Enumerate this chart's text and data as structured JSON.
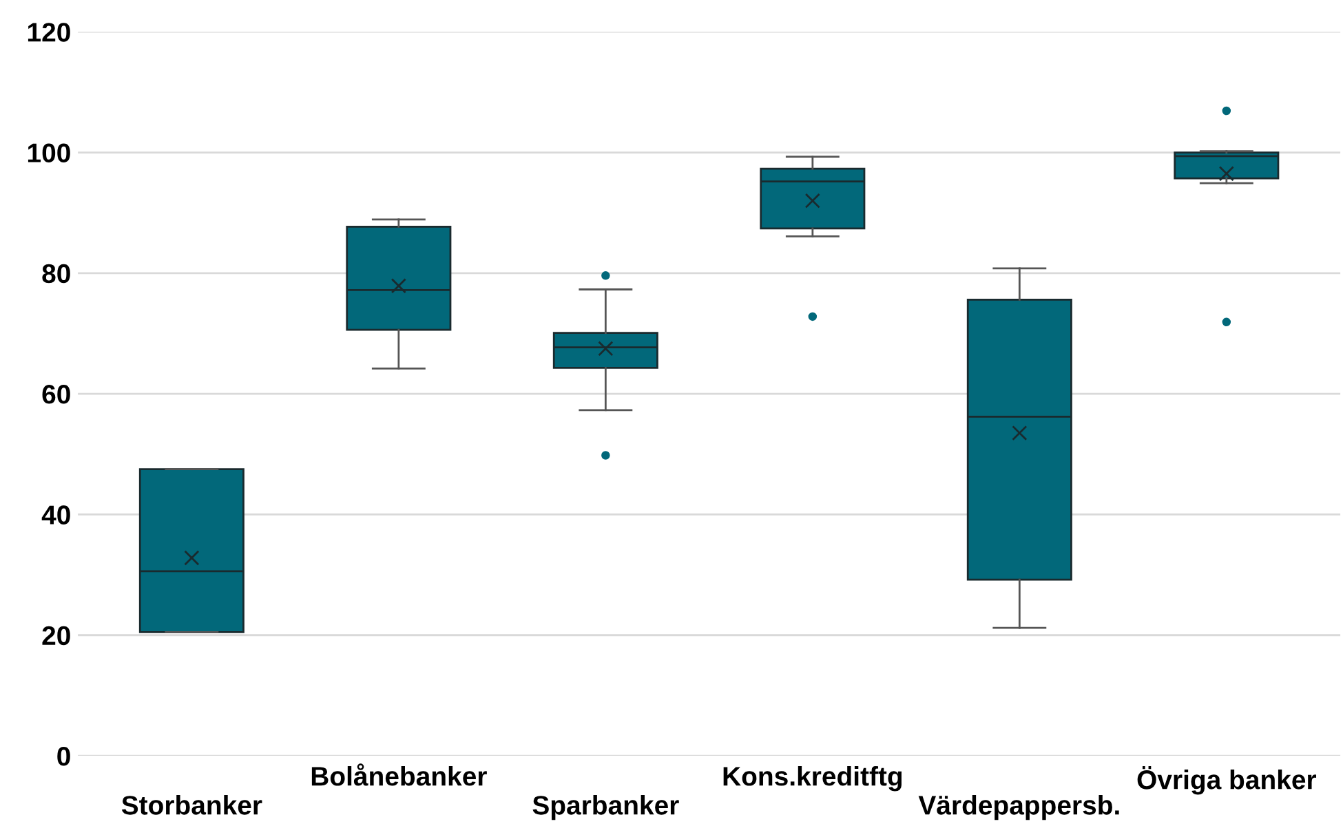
{
  "chart_data": {
    "type": "box",
    "categories": [
      "Storbanker",
      "Bolånebanker",
      "Sparbanker",
      "Kons.kreditftg",
      "Värdepappersb.",
      "Övriga banker"
    ],
    "color": "#02687a",
    "boxes": [
      {
        "low": 20.5,
        "q1": 20.5,
        "median": 30.6,
        "q3": 47.5,
        "high": 47.5,
        "mean": 32.8
      },
      {
        "low": 64.2,
        "q1": 70.6,
        "median": 77.2,
        "q3": 87.7,
        "high": 88.9,
        "mean": 77.9
      },
      {
        "low": 57.3,
        "q1": 64.3,
        "median": 67.7,
        "q3": 70.1,
        "high": 77.3,
        "mean": 67.5,
        "outliers": [
          79.6,
          49.8
        ]
      },
      {
        "low": 86.1,
        "q1": 87.4,
        "median": 95.2,
        "q3": 97.3,
        "high": 99.3,
        "mean": 92.0,
        "outliers": [
          72.8
        ]
      },
      {
        "low": 21.2,
        "q1": 29.2,
        "median": 56.2,
        "q3": 75.6,
        "high": 80.8,
        "mean": 53.5
      },
      {
        "low": 94.9,
        "q1": 95.7,
        "median": 99.4,
        "q3": 100.0,
        "high": 100.2,
        "mean": 96.5,
        "outliers": [
          106.9,
          71.9
        ]
      }
    ],
    "ylim": [
      0,
      120
    ],
    "yticks": [
      0,
      20,
      40,
      60,
      80,
      100,
      120
    ],
    "grid": "y"
  }
}
